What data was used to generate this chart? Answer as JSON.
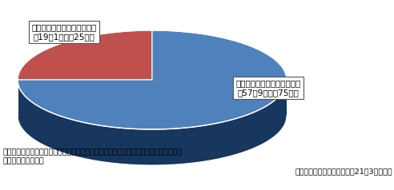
{
  "slices": [
    75,
    25
  ],
  "colors_top": [
    "#4F81BD",
    "#C0504D"
  ],
  "colors_side": [
    "#17375E",
    "#7B1C1C"
  ],
  "label_blue": "耳震基準を満たしている施設\n紉57万9万㎡（75％）",
  "label_red": "耳震基準に達していない施設\n紉19万1万㎡（25％）",
  "footnote1": "対象：国土交通大臣が所挂する災害応急対策活動に必要な官庁施設，危険物を貢蔵・使\n用する等の官庁施設",
  "footnote2": "国土交通省資料による（平成21年3月現在）",
  "bg_color": "#FFFFFF"
}
